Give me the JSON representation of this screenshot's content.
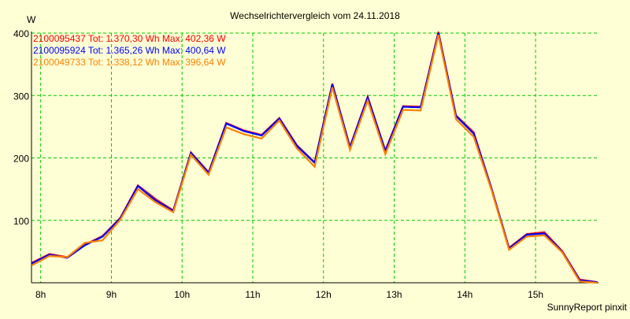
{
  "chart_data": {
    "type": "line",
    "title": "Wechselrichtervergleich vom 24.11.2018",
    "ylabel": "W",
    "xlabel": "",
    "footer": "SunnyReport pinxit",
    "ylim": [
      0,
      400
    ],
    "xlim": [
      7.87,
      15.89
    ],
    "yticks": [
      100,
      200,
      300,
      400
    ],
    "xticks": [
      {
        "v": 8,
        "label": "8h"
      },
      {
        "v": 9,
        "label": "9h"
      },
      {
        "v": 10,
        "label": "10h"
      },
      {
        "v": 11,
        "label": "11h"
      },
      {
        "v": 12,
        "label": "12h"
      },
      {
        "v": 13,
        "label": "13h"
      },
      {
        "v": 14,
        "label": "14h"
      },
      {
        "v": 15,
        "label": "15h"
      }
    ],
    "grid": true,
    "legend_position": "top-left",
    "x_start": 7.875,
    "x_step": 0.25,
    "series": [
      {
        "name": "2100095437",
        "legend": "2100095437 Tot: 1.370,30 Wh Max: 402,36 W",
        "color": "#ff0000",
        "values": [
          32,
          46,
          41,
          61,
          75,
          104,
          156,
          134,
          116,
          209,
          177,
          256,
          244,
          237,
          264,
          220,
          193,
          319,
          218,
          298,
          212,
          283,
          282,
          402,
          268,
          241,
          152,
          56,
          78,
          81,
          51,
          5,
          1
        ]
      },
      {
        "name": "2100095924",
        "legend": "2100095924 Tot: 1.365,26 Wh Max: 400,64 W",
        "color": "#0000ff",
        "values": [
          31,
          45,
          40,
          60,
          74,
          103,
          155,
          132,
          115,
          208,
          176,
          255,
          243,
          236,
          263,
          219,
          192,
          318,
          217,
          297,
          211,
          282,
          281,
          400,
          267,
          239,
          151,
          55,
          77,
          79,
          50,
          4,
          1
        ]
      },
      {
        "name": "2100049733",
        "legend": "2100049733 Tot: 1.338,12 Wh Max: 396,64 W",
        "color": "#ff8000",
        "values": [
          28,
          43,
          41,
          64,
          68,
          101,
          150,
          129,
          113,
          205,
          173,
          249,
          238,
          231,
          260,
          215,
          186,
          313,
          213,
          292,
          206,
          277,
          276,
          397,
          262,
          234,
          149,
          53,
          74,
          76,
          49,
          2,
          0
        ]
      }
    ]
  }
}
